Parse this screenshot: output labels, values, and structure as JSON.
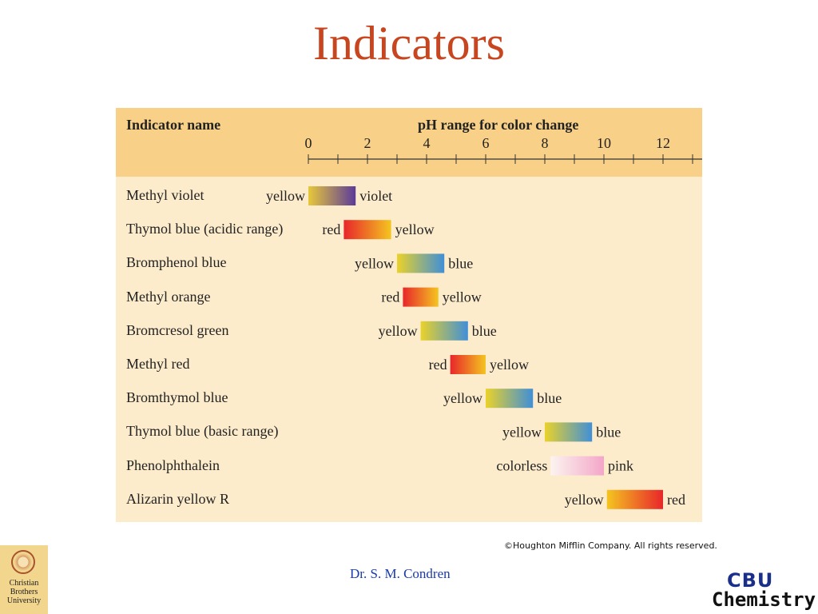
{
  "slide": {
    "title": "Indicators",
    "copyright": "©Houghton Mifflin Company. All rights reserved.",
    "author": "Dr. S. M. Condren",
    "logo_left": "Christian Brothers University",
    "logo_right_line1": "CBU",
    "logo_right_line2": "Chemistry"
  },
  "chart_data": {
    "type": "table",
    "header_name": "Indicator name",
    "header_range": "pH range for color change",
    "xlim": [
      0,
      13
    ],
    "tick_labels": [
      "0",
      "2",
      "4",
      "6",
      "8",
      "10",
      "12"
    ],
    "tick_values": [
      0,
      2,
      4,
      6,
      8,
      10,
      12
    ],
    "minor_ticks": [
      0,
      1,
      2,
      3,
      4,
      5,
      6,
      7,
      8,
      9,
      10,
      11,
      12,
      13
    ],
    "indicators": [
      {
        "name": "Methyl violet",
        "start": 0.0,
        "end": 1.6,
        "low_color": "yellow",
        "high_color": "violet",
        "c1": "#e8c83a",
        "c2": "#5b3a9a"
      },
      {
        "name": "Thymol blue (acidic range)",
        "start": 1.2,
        "end": 2.8,
        "low_color": "red",
        "high_color": "yellow",
        "c1": "#e8262a",
        "c2": "#f4c520"
      },
      {
        "name": "Bromphenol blue",
        "start": 3.0,
        "end": 4.6,
        "low_color": "yellow",
        "high_color": "blue",
        "c1": "#ead22a",
        "c2": "#3f8fd8"
      },
      {
        "name": "Methyl orange",
        "start": 3.2,
        "end": 4.4,
        "low_color": "red",
        "high_color": "yellow",
        "c1": "#e8262a",
        "c2": "#f4c520"
      },
      {
        "name": "Bromcresol green",
        "start": 3.8,
        "end": 5.4,
        "low_color": "yellow",
        "high_color": "blue",
        "c1": "#ead22a",
        "c2": "#3f8fd8"
      },
      {
        "name": "Methyl red",
        "start": 4.8,
        "end": 6.0,
        "low_color": "red",
        "high_color": "yellow",
        "c1": "#e8262a",
        "c2": "#f4c520"
      },
      {
        "name": "Bromthymol blue",
        "start": 6.0,
        "end": 7.6,
        "low_color": "yellow",
        "high_color": "blue",
        "c1": "#ead22a",
        "c2": "#3f8fd8"
      },
      {
        "name": "Thymol blue (basic range)",
        "start": 8.0,
        "end": 9.6,
        "low_color": "yellow",
        "high_color": "blue",
        "c1": "#ead22a",
        "c2": "#3f8fd8"
      },
      {
        "name": "Phenolphthalein",
        "start": 8.2,
        "end": 10.0,
        "low_color": "colorless",
        "high_color": "pink",
        "c1": "#fbf4f0",
        "c2": "#f4a6c8"
      },
      {
        "name": "Alizarin yellow R",
        "start": 10.1,
        "end": 12.0,
        "low_color": "yellow",
        "high_color": "red",
        "c1": "#f4c520",
        "c2": "#e8262a"
      }
    ]
  }
}
